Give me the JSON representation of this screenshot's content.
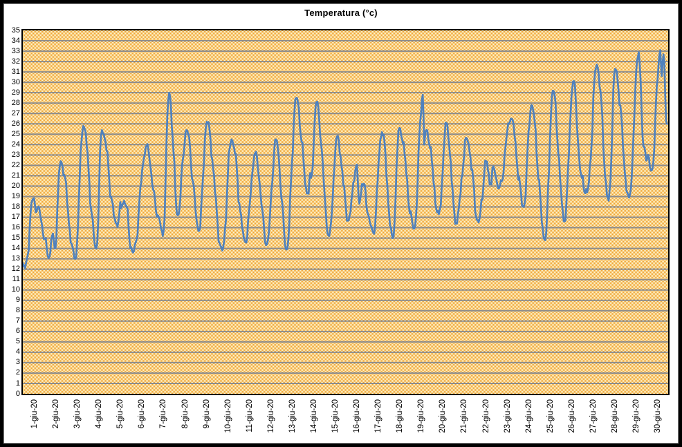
{
  "title": "Temperatura (°c)",
  "chart_data": {
    "type": "line",
    "title": "Temperatura (°c)",
    "ylabel": "",
    "xlabel": "",
    "ylim": [
      0,
      35
    ],
    "y_tick_step": 1,
    "grid": "horizontal",
    "legend": "none",
    "series_name": "Temperatura",
    "sampling_note": "intraday curve, ~hourly points; per-day morning min and afternoon max read from chart",
    "colors": {
      "line": "#4F81BD",
      "gridline": "#8C8C8C",
      "plot_pattern_orange": "#F0A22E",
      "plot_pattern_cream": "#FFF9D6",
      "plot_border": "#000000",
      "text": "#000000",
      "frame": "#000000"
    },
    "start": {
      "t": 0.84,
      "value": 12.6
    },
    "end": {
      "t": 30.81,
      "value": 26.0
    },
    "days": [
      {
        "label": "1-giu-20",
        "t_min": 0.95,
        "min": 12.1,
        "t_max": 1.32,
        "max": 18.8
      },
      {
        "label": "2-giu-20",
        "t_min": 2.08,
        "min": 13.2,
        "t_max": 2.6,
        "max": 22.4
      },
      {
        "label": "3-giu-20",
        "t_min": 3.28,
        "min": 13.0,
        "t_max": 3.65,
        "max": 25.8
      },
      {
        "label": "4-giu-20",
        "t_min": 4.26,
        "min": 14.0,
        "t_max": 4.52,
        "max": 25.4
      },
      {
        "label": "5-giu-20",
        "t_min": 5.2,
        "min": 16.4,
        "t_max": 5.55,
        "max": 18.6
      },
      {
        "label": "6-giu-20",
        "t_min": 5.97,
        "min": 13.6,
        "t_max": 6.6,
        "max": 23.9
      },
      {
        "label": "7-giu-20",
        "t_min": 7.35,
        "min": 15.2,
        "t_max": 7.65,
        "max": 29.0
      },
      {
        "label": "8-giu-20",
        "t_min": 8.05,
        "min": 17.2,
        "t_max": 8.45,
        "max": 25.4
      },
      {
        "label": "9-giu-20",
        "t_min": 9.05,
        "min": 15.7,
        "t_max": 9.4,
        "max": 26.2
      },
      {
        "label": "10-giu-20",
        "t_min": 10.12,
        "min": 13.8,
        "t_max": 10.55,
        "max": 24.5
      },
      {
        "label": "11-giu-20",
        "t_min": 11.2,
        "min": 14.6,
        "t_max": 11.65,
        "max": 23.2
      },
      {
        "label": "12-giu-20",
        "t_min": 12.2,
        "min": 14.4,
        "t_max": 12.62,
        "max": 24.5
      },
      {
        "label": "13-giu-20",
        "t_min": 13.12,
        "min": 13.9,
        "t_max": 13.56,
        "max": 28.5
      },
      {
        "label": "14-giu-20",
        "t_min": 14.1,
        "min": 19.3,
        "t_max": 14.5,
        "max": 28.1
      },
      {
        "label": "15-giu-20",
        "t_min": 15.1,
        "min": 15.2,
        "t_max": 15.46,
        "max": 24.8
      },
      {
        "label": "16-giu-20",
        "t_min": 16.0,
        "min": 16.7,
        "t_max": 16.35,
        "max": 21.9
      },
      {
        "label": "17-giu-20",
        "t_min": 17.15,
        "min": 15.5,
        "t_max": 17.55,
        "max": 25.2
      },
      {
        "label": "18-giu-20",
        "t_min": 18.05,
        "min": 15.0,
        "t_max": 18.36,
        "max": 25.6
      },
      {
        "label": "19-giu-20",
        "t_min": 19.05,
        "min": 15.9,
        "t_max": 19.45,
        "max": 28.8
      },
      {
        "label": "20-giu-20",
        "t_min": 20.2,
        "min": 17.3,
        "t_max": 20.55,
        "max": 26.1
      },
      {
        "label": "21-giu-20",
        "t_min": 21.0,
        "min": 16.4,
        "t_max": 21.5,
        "max": 24.6
      },
      {
        "label": "22-giu-20",
        "t_min": 22.05,
        "min": 16.5,
        "t_max": 22.4,
        "max": 22.4
      },
      {
        "label": "23-giu-20",
        "t_min": 23.0,
        "min": 19.8,
        "t_max": 23.55,
        "max": 26.5
      },
      {
        "label": "24-giu-20",
        "t_min": 24.15,
        "min": 18.0,
        "t_max": 24.5,
        "max": 27.8
      },
      {
        "label": "25-giu-20",
        "t_min": 25.15,
        "min": 14.8,
        "t_max": 25.5,
        "max": 29.2
      },
      {
        "label": "26-giu-20",
        "t_min": 26.05,
        "min": 16.6,
        "t_max": 26.45,
        "max": 30.1
      },
      {
        "label": "27-giu-20",
        "t_min": 27.1,
        "min": 19.4,
        "t_max": 27.55,
        "max": 31.7
      },
      {
        "label": "28-giu-20",
        "t_min": 28.1,
        "min": 18.6,
        "t_max": 28.4,
        "max": 31.3
      },
      {
        "label": "29-giu-20",
        "t_min": 29.05,
        "min": 18.9,
        "t_max": 29.5,
        "max": 32.9
      },
      {
        "label": "30-giu-20",
        "t_min": 30.1,
        "min": 21.5,
        "t_max": 30.5,
        "max": 33.1
      }
    ],
    "extra_anchors": [
      [
        1.52,
        17.9
      ],
      [
        2.2,
        15.2
      ],
      [
        2.32,
        14.0
      ],
      [
        7.12,
        17.2
      ],
      [
        14.25,
        20.8
      ],
      [
        16.5,
        18.3
      ],
      [
        16.62,
        20.2
      ],
      [
        19.52,
        24.0
      ],
      [
        19.62,
        25.4
      ],
      [
        22.6,
        20.3
      ],
      [
        22.78,
        21.6
      ],
      [
        26.85,
        20.8
      ],
      [
        29.72,
        23.8
      ],
      [
        30.57,
        30.6
      ],
      [
        30.65,
        32.7
      ]
    ]
  }
}
